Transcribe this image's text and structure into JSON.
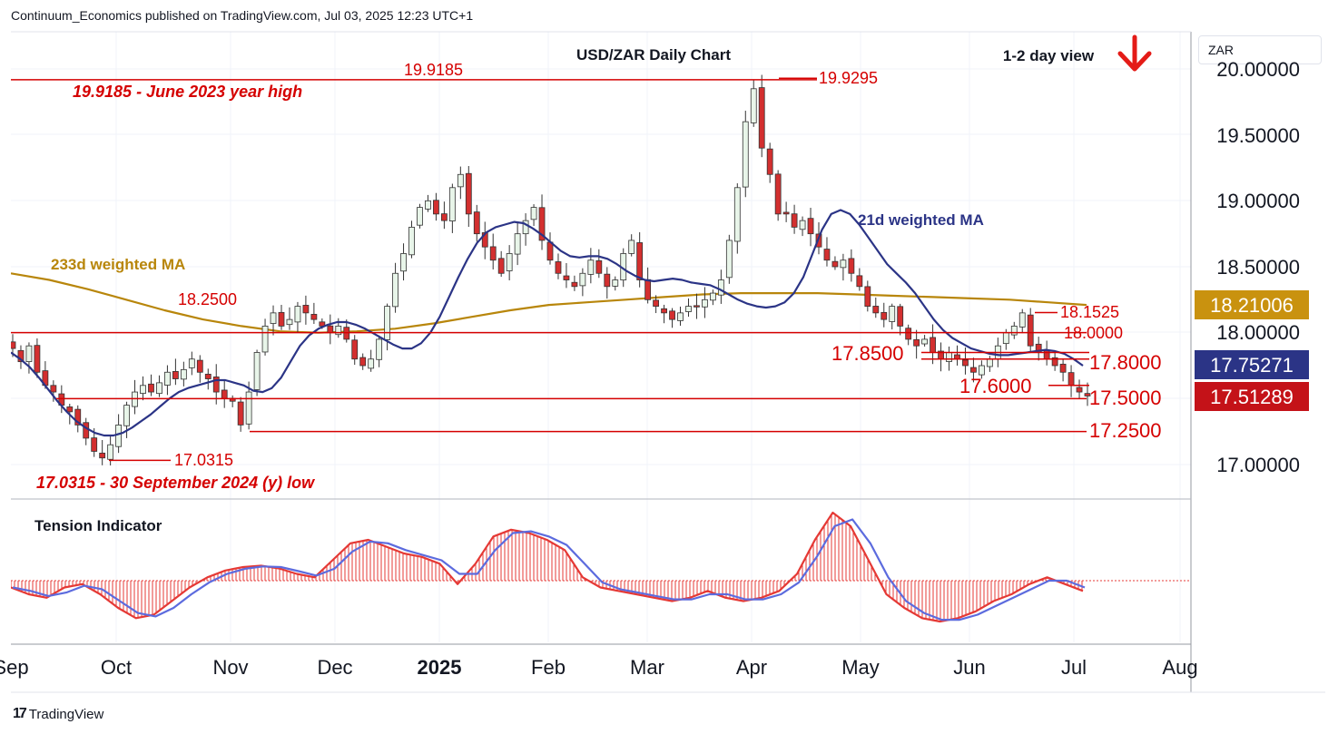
{
  "header": {
    "publisher_line": "Continuum_Economics published on TradingView.com, Jul 03, 2025 12:23 UTC+1"
  },
  "currency": "ZAR",
  "footer": {
    "brand": "TradingView",
    "brand_mark": "17"
  },
  "chart_data": {
    "type": "candlestick",
    "title": "USD/ZAR Daily Chart",
    "view_label": "1-2 day view",
    "view_direction": "down",
    "y_axis": {
      "ticks": [
        "20.00000",
        "19.50000",
        "19.00000",
        "18.50000",
        "18.00000",
        "17.00000"
      ],
      "ylim": [
        16.75,
        20.25
      ]
    },
    "x_axis": {
      "ticks": [
        "Sep",
        "Oct",
        "Nov",
        "Dec",
        "2025",
        "Feb",
        "Mar",
        "Apr",
        "May",
        "Jun",
        "Jul",
        "Aug"
      ]
    },
    "price_tags": [
      {
        "label": "18.21006",
        "value": 18.21006,
        "color": "#c9920f"
      },
      {
        "label": "17.75271",
        "value": 17.75271,
        "color": "#2b3486"
      },
      {
        "label": "17.51289",
        "value": 17.51289,
        "color": "#c41218"
      }
    ],
    "horizontal_levels": [
      {
        "value": 19.9185,
        "label": "19.9185",
        "note": "19.9185 - June 2023 year high"
      },
      {
        "value": 19.9295,
        "label": "19.9295"
      },
      {
        "value": 18.25,
        "label": "18.2500"
      },
      {
        "value": 18.1525,
        "label": "18.1525"
      },
      {
        "value": 18.0,
        "label": "18.0000"
      },
      {
        "value": 17.85,
        "label": "17.8500"
      },
      {
        "value": 17.8,
        "label": "17.8000"
      },
      {
        "value": 17.6,
        "label": "17.6000"
      },
      {
        "value": 17.5,
        "label": "17.5000"
      },
      {
        "value": 17.25,
        "label": "17.2500"
      },
      {
        "value": 17.0315,
        "label": "17.0315",
        "note": "17.0315 - 30 September 2024 (y) low"
      }
    ],
    "annotations": {
      "ma21_label": "21d weighted MA",
      "ma233_label": "233d weighted MA",
      "tension_label": "Tension Indicator"
    },
    "colors": {
      "up": "#2e7d32",
      "down": "#c41218",
      "ma21": "#2b3486",
      "ma233": "#b8860b",
      "level": "#d50000",
      "tension_red": "#e53935",
      "tension_blue": "#5c6bde"
    },
    "close_series": [
      17.88,
      17.78,
      17.9,
      17.7,
      17.6,
      17.55,
      17.45,
      17.4,
      17.3,
      17.2,
      17.1,
      17.05,
      17.15,
      17.3,
      17.45,
      17.55,
      17.6,
      17.55,
      17.62,
      17.7,
      17.65,
      17.72,
      17.8,
      17.7,
      17.65,
      17.55,
      17.5,
      17.48,
      17.3,
      17.55,
      17.85,
      18.05,
      18.15,
      18.05,
      18.1,
      18.2,
      18.15,
      18.1,
      18.05,
      18.0,
      18.05,
      17.95,
      17.8,
      17.75,
      17.8,
      17.95,
      18.2,
      18.45,
      18.6,
      18.8,
      18.95,
      19.0,
      18.9,
      18.85,
      19.1,
      19.2,
      18.9,
      18.75,
      18.65,
      18.55,
      18.45,
      18.6,
      18.75,
      18.85,
      18.95,
      18.7,
      18.55,
      18.45,
      18.4,
      18.35,
      18.45,
      18.55,
      18.45,
      18.35,
      18.4,
      18.6,
      18.7,
      18.4,
      18.25,
      18.2,
      18.15,
      18.1,
      18.15,
      18.2,
      18.2,
      18.25,
      18.3,
      18.4,
      18.7,
      19.1,
      19.6,
      19.85,
      19.4,
      19.2,
      18.9,
      18.9,
      18.8,
      18.85,
      18.75,
      18.65,
      18.55,
      18.5,
      18.55,
      18.45,
      18.35,
      18.2,
      18.15,
      18.1,
      18.2,
      18.05,
      17.95,
      17.9,
      17.95,
      17.85,
      17.8,
      17.85,
      17.8,
      17.75,
      17.7,
      17.75,
      17.8,
      17.9,
      18.0,
      18.05,
      18.15,
      17.9,
      17.85,
      17.8,
      17.75,
      17.7,
      17.6,
      17.55,
      17.52
    ],
    "ma21_series": [
      17.85,
      17.8,
      17.74,
      17.66,
      17.57,
      17.48,
      17.4,
      17.33,
      17.28,
      17.24,
      17.22,
      17.22,
      17.24,
      17.28,
      17.33,
      17.38,
      17.44,
      17.5,
      17.55,
      17.58,
      17.6,
      17.62,
      17.64,
      17.64,
      17.62,
      17.6,
      17.56,
      17.55,
      17.58,
      17.66,
      17.78,
      17.9,
      17.98,
      18.03,
      18.06,
      18.08,
      18.08,
      18.06,
      18.03,
      17.99,
      17.95,
      17.91,
      17.88,
      17.88,
      17.92,
      18.0,
      18.12,
      18.27,
      18.42,
      18.56,
      18.68,
      18.76,
      18.8,
      18.82,
      18.84,
      18.83,
      18.79,
      18.74,
      18.68,
      18.62,
      18.58,
      18.57,
      18.58,
      18.58,
      18.56,
      18.52,
      18.47,
      18.43,
      18.4,
      18.39,
      18.4,
      18.41,
      18.4,
      18.38,
      18.37,
      18.36,
      18.33,
      18.29,
      18.25,
      18.22,
      18.2,
      18.19,
      18.2,
      18.23,
      18.3,
      18.42,
      18.6,
      18.78,
      18.9,
      18.93,
      18.9,
      18.82,
      18.72,
      18.62,
      18.52,
      18.45,
      18.38,
      18.3,
      18.2,
      18.1,
      18.02,
      17.96,
      17.92,
      17.88,
      17.86,
      17.84,
      17.83,
      17.83,
      17.84,
      17.85,
      17.86,
      17.87,
      17.86,
      17.84,
      17.8,
      17.75
    ],
    "ma233_series": [
      18.45,
      18.4,
      18.33,
      18.25,
      18.17,
      18.1,
      18.05,
      18.01,
      18.0,
      18.01,
      18.03,
      18.07,
      18.12,
      18.17,
      18.21,
      18.23,
      18.25,
      18.27,
      18.29,
      18.3,
      18.3,
      18.3,
      18.29,
      18.28,
      18.27,
      18.26,
      18.25,
      18.23,
      18.21
    ],
    "tension_series": [
      -0.1,
      -0.2,
      -0.25,
      -0.1,
      -0.05,
      -0.2,
      -0.4,
      -0.55,
      -0.5,
      -0.3,
      -0.1,
      0.05,
      0.15,
      0.2,
      0.22,
      0.18,
      0.1,
      0.05,
      0.3,
      0.55,
      0.6,
      0.5,
      0.4,
      0.35,
      0.25,
      -0.05,
      0.25,
      0.65,
      0.75,
      0.7,
      0.6,
      0.45,
      0.05,
      -0.1,
      -0.15,
      -0.2,
      -0.25,
      -0.3,
      -0.25,
      -0.15,
      -0.25,
      -0.3,
      -0.25,
      -0.15,
      0.1,
      0.6,
      1.0,
      0.8,
      0.3,
      -0.2,
      -0.4,
      -0.55,
      -0.6,
      -0.55,
      -0.45,
      -0.3,
      -0.2,
      -0.05,
      0.05,
      -0.05,
      -0.15
    ]
  }
}
